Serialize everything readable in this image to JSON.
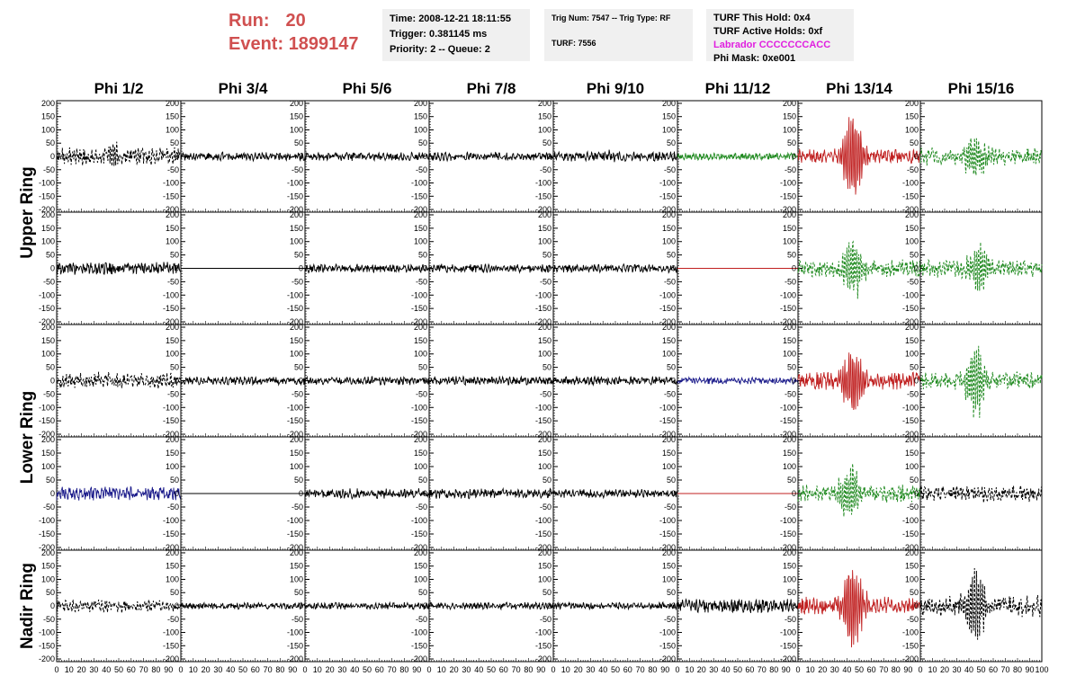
{
  "header": {
    "run_label": "Run:",
    "run_value": "20",
    "event_label": "Event:",
    "event_value": "1899147",
    "time": "Time: 2008-12-21 18:11:55",
    "trigger": "Trigger: 0.381145 ms",
    "priority": "Priority: 2 -- Queue: 2",
    "trig_num": "Trig Num: 7547 -- Trig Type: RF",
    "turf": "TURF: 7556",
    "turf_hold": "TURF This Hold: 0x4",
    "turf_active": "TURF Active Holds: 0xf",
    "labrador": "Labrador CCCCCCCACC",
    "phi_mask": "Phi Mask: 0xe001",
    "labrador_color": "#e020e0"
  },
  "chart_data": {
    "type": "line",
    "title": "",
    "xlabel": "",
    "ylabel": "",
    "columns": [
      "Phi 1/2",
      "Phi 3/4",
      "Phi 5/6",
      "Phi 7/8",
      "Phi 9/10",
      "Phi 11/12",
      "Phi 13/14",
      "Phi 15/16"
    ],
    "ring_labels": [
      {
        "text": "Upper Ring",
        "rows": [
          0,
          1
        ]
      },
      {
        "text": "Lower Ring",
        "rows": [
          2,
          3
        ]
      },
      {
        "text": "Nadir Ring",
        "rows": [
          4,
          4
        ]
      }
    ],
    "xlim": [
      0,
      100
    ],
    "ylim": [
      -210,
      210
    ],
    "x_ticks": [
      0,
      10,
      20,
      30,
      40,
      50,
      60,
      70,
      80,
      90,
      100
    ],
    "y_ticks": [
      200,
      150,
      100,
      50,
      0,
      -50,
      -100,
      -150,
      -200
    ],
    "colors": {
      "black": "#000000",
      "green": "#228b22",
      "red": "#c02020",
      "blue": "#1a1a8a"
    },
    "panels": [
      [
        {
          "color": "black",
          "dash": true,
          "amp": 25,
          "burst": 45,
          "center": 45
        },
        {
          "color": "black",
          "dash": false,
          "amp": 12,
          "burst": 0,
          "center": 45
        },
        {
          "color": "black",
          "dash": false,
          "amp": 12,
          "burst": 5,
          "center": 45
        },
        {
          "color": "black",
          "dash": false,
          "amp": 12,
          "burst": 5,
          "center": 45
        },
        {
          "color": "black",
          "dash": false,
          "amp": 14,
          "burst": 8,
          "center": 45
        },
        {
          "color": "green",
          "dash": false,
          "amp": 10,
          "burst": 0,
          "center": 45
        },
        {
          "color": "red",
          "dash": false,
          "amp": 20,
          "burst": 200,
          "center": 45
        },
        {
          "color": "green",
          "dash": true,
          "amp": 25,
          "burst": 95,
          "center": 45
        }
      ],
      [
        {
          "color": "black",
          "dash": false,
          "amp": 18,
          "burst": 5,
          "center": 45
        },
        {
          "color": "black",
          "dash": false,
          "amp": 0,
          "burst": 0,
          "center": 45
        },
        {
          "color": "black",
          "dash": false,
          "amp": 12,
          "burst": 0,
          "center": 45
        },
        {
          "color": "black",
          "dash": false,
          "amp": 12,
          "burst": 0,
          "center": 45
        },
        {
          "color": "black",
          "dash": false,
          "amp": 12,
          "burst": 0,
          "center": 45
        },
        {
          "color": "red",
          "dash": false,
          "amp": 0,
          "burst": 0,
          "center": 45
        },
        {
          "color": "green",
          "dash": true,
          "amp": 25,
          "burst": 130,
          "center": 45
        },
        {
          "color": "green",
          "dash": true,
          "amp": 25,
          "burst": 110,
          "center": 48
        }
      ],
      [
        {
          "color": "black",
          "dash": true,
          "amp": 22,
          "burst": 25,
          "center": 45
        },
        {
          "color": "black",
          "dash": false,
          "amp": 12,
          "burst": 0,
          "center": 45
        },
        {
          "color": "black",
          "dash": false,
          "amp": 12,
          "burst": 0,
          "center": 45
        },
        {
          "color": "black",
          "dash": false,
          "amp": 12,
          "burst": 0,
          "center": 45
        },
        {
          "color": "black",
          "dash": false,
          "amp": 12,
          "burst": 0,
          "center": 45
        },
        {
          "color": "blue",
          "dash": false,
          "amp": 10,
          "burst": 0,
          "center": 45
        },
        {
          "color": "red",
          "dash": false,
          "amp": 25,
          "burst": 160,
          "center": 45
        },
        {
          "color": "green",
          "dash": true,
          "amp": 25,
          "burst": 140,
          "center": 45
        }
      ],
      [
        {
          "color": "blue",
          "dash": false,
          "amp": 20,
          "burst": 0,
          "center": 45
        },
        {
          "color": "black",
          "dash": false,
          "amp": 0,
          "burst": 0,
          "center": 45
        },
        {
          "color": "black",
          "dash": false,
          "amp": 14,
          "burst": 0,
          "center": 45
        },
        {
          "color": "black",
          "dash": false,
          "amp": 14,
          "burst": 0,
          "center": 45
        },
        {
          "color": "black",
          "dash": false,
          "amp": 12,
          "burst": 0,
          "center": 45
        },
        {
          "color": "red",
          "dash": false,
          "amp": 0,
          "burst": 0,
          "center": 45
        },
        {
          "color": "green",
          "dash": true,
          "amp": 25,
          "burst": 130,
          "center": 42
        },
        {
          "color": "black",
          "dash": true,
          "amp": 22,
          "burst": 20,
          "center": 45
        }
      ],
      [
        {
          "color": "black",
          "dash": true,
          "amp": 18,
          "burst": 10,
          "center": 45
        },
        {
          "color": "black",
          "dash": false,
          "amp": 10,
          "burst": 0,
          "center": 45
        },
        {
          "color": "black",
          "dash": false,
          "amp": 10,
          "burst": 0,
          "center": 45
        },
        {
          "color": "black",
          "dash": false,
          "amp": 10,
          "burst": 0,
          "center": 45
        },
        {
          "color": "black",
          "dash": false,
          "amp": 10,
          "burst": 0,
          "center": 45
        },
        {
          "color": "black",
          "dash": false,
          "amp": 20,
          "burst": 10,
          "center": 45
        },
        {
          "color": "red",
          "dash": false,
          "amp": 25,
          "burst": 200,
          "center": 45
        },
        {
          "color": "black",
          "dash": true,
          "amp": 30,
          "burst": 150,
          "center": 45
        }
      ]
    ]
  }
}
